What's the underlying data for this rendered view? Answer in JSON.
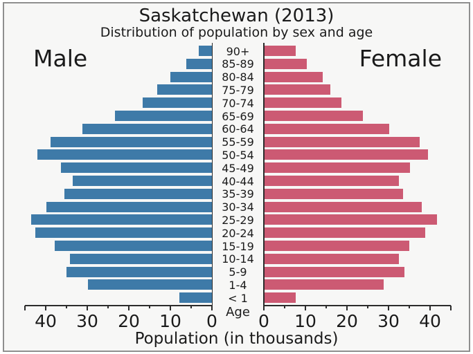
{
  "chart_data": {
    "type": "bar",
    "subtype": "population-pyramid",
    "title": "Saskatchewan (2013)",
    "subtitle": "Distribution of population by sex and age",
    "xlabel": "Population (in thousands)",
    "center_axis_label": "Age",
    "categories": [
      "90+",
      "85-89",
      "80-84",
      "75-79",
      "70-74",
      "65-69",
      "60-64",
      "55-59",
      "50-54",
      "45-49",
      "40-44",
      "35-39",
      "30-34",
      "25-29",
      "20-24",
      "15-19",
      "10-14",
      "5-9",
      "1-4",
      "< 1"
    ],
    "series": [
      {
        "name": "Male",
        "side": "left",
        "color": "#3e7aa8",
        "values": [
          3.2,
          6.2,
          10.0,
          13.2,
          16.7,
          23.3,
          31.2,
          38.8,
          42.0,
          36.3,
          33.5,
          35.5,
          39.8,
          43.5,
          42.5,
          37.8,
          34.2,
          35.0,
          29.8,
          7.8
        ]
      },
      {
        "name": "Female",
        "side": "right",
        "color": "#cc5a73",
        "values": [
          7.5,
          10.1,
          14.0,
          15.8,
          18.5,
          23.7,
          30.0,
          37.3,
          39.3,
          35.0,
          32.3,
          33.4,
          37.8,
          41.5,
          38.7,
          34.8,
          32.4,
          33.7,
          28.6,
          7.5
        ]
      }
    ],
    "x_tick_labels": [
      0,
      10,
      20,
      30,
      40
    ],
    "x_minor_tick_step": 5,
    "xlim": [
      0,
      45
    ],
    "grid": false,
    "legend_position": "top-corners-as-text"
  },
  "colors": {
    "background": "#f7f7f6",
    "frame_border": "#8f8f8f",
    "axis": "#2b2b2b",
    "text": "#1a1a1a",
    "male_bar": "#3e7aa8",
    "female_bar": "#cc5a73"
  }
}
